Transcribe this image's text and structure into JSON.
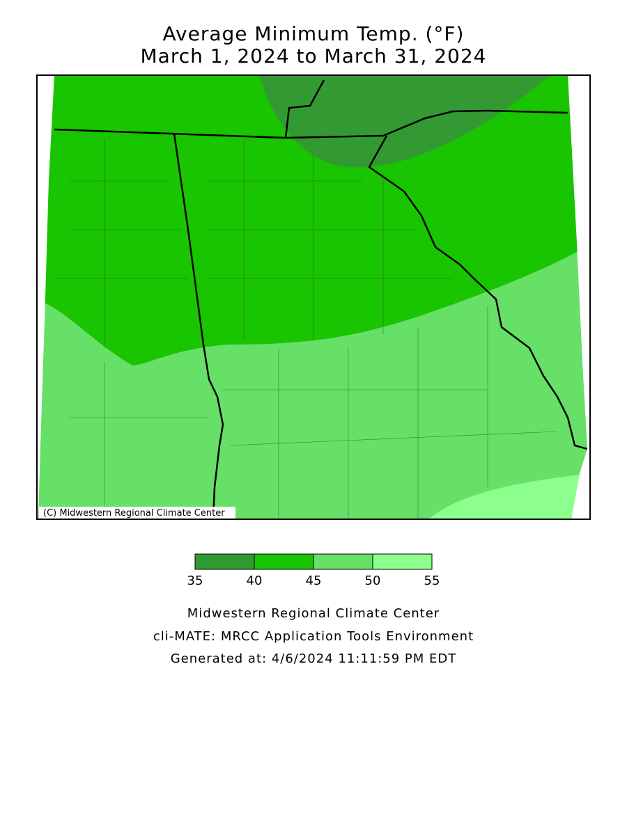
{
  "header": {
    "title": [
      "Average Minimum Temp. (°F)",
      "March 1, 2024 to March 31, 2024"
    ]
  },
  "map": {
    "credit": "(C) Midwestern Regional Climate Center"
  },
  "legend": {
    "ticks": [
      35,
      40,
      45,
      50,
      55
    ],
    "colors": [
      "#339a33",
      "#19c400",
      "#66e066",
      "#8cff8c"
    ]
  },
  "footer": {
    "lines": [
      "Midwestern Regional Climate Center",
      "cli-MATE: MRCC Application Tools Environment",
      "Generated at: 4/6/2024 11:11:59 PM EDT"
    ]
  }
}
